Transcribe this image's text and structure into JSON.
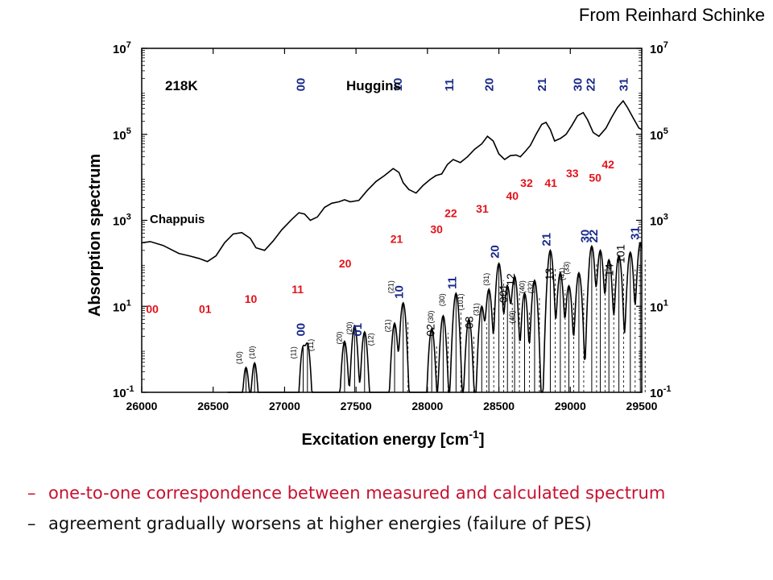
{
  "credit": "From Reinhard Schinke",
  "chart_data": {
    "type": "line",
    "xlabel": "Excitation energy [cm",
    "xlabel_exp": "-1",
    "xlabel_close": "]",
    "ylabel": "Absorption spectrum",
    "xlim": [
      26000,
      29500
    ],
    "ylim": [
      0.1,
      10000000
    ],
    "yscale": "log",
    "x_ticks": [
      "26000",
      "26500",
      "27000",
      "27500",
      "28000",
      "28500",
      "29000",
      "29500"
    ],
    "y_ticks": [
      {
        "base": "10",
        "exp": "-1"
      },
      {
        "base": "10",
        "exp": "1"
      },
      {
        "base": "10",
        "exp": "3"
      },
      {
        "base": "10",
        "exp": "5"
      },
      {
        "base": "10",
        "exp": "7"
      }
    ],
    "annotations": {
      "temperature": "218K",
      "huggins": "Huggins",
      "chappuis": "Chappuis"
    },
    "measured": {
      "x": [
        26000,
        26060,
        26150,
        26260,
        26330,
        26400,
        26460,
        26520,
        26580,
        26640,
        26700,
        26760,
        26800,
        26860,
        26920,
        26980,
        27050,
        27100,
        27140,
        27180,
        27230,
        27280,
        27330,
        27380,
        27420,
        27460,
        27520,
        27580,
        27640,
        27700,
        27760,
        27800,
        27830,
        27870,
        27920,
        27970,
        28020,
        28060,
        28100,
        28140,
        28180,
        28230,
        28280,
        28330,
        28380,
        28420,
        28460,
        28500,
        28540,
        28580,
        28620,
        28650,
        28690,
        28720,
        28760,
        28800,
        28830,
        28860,
        28890,
        28930,
        28970,
        29010,
        29050,
        29090,
        29120,
        29160,
        29200,
        29250,
        29290,
        29330,
        29370,
        29400,
        29440,
        29480,
        29500
      ],
      "y": [
        300,
        320,
        260,
        170,
        150,
        130,
        110,
        150,
        300,
        480,
        520,
        380,
        230,
        200,
        330,
        600,
        1050,
        1500,
        1400,
        1000,
        1200,
        2000,
        2500,
        2700,
        3000,
        2700,
        2900,
        5000,
        8000,
        11000,
        16000,
        13000,
        7500,
        5200,
        4300,
        6500,
        9000,
        11000,
        12000,
        20000,
        26000,
        22000,
        30000,
        45000,
        60000,
        90000,
        70000,
        35000,
        26000,
        32000,
        33000,
        30000,
        42000,
        55000,
        100000,
        170000,
        190000,
        130000,
        70000,
        80000,
        100000,
        160000,
        270000,
        320000,
        220000,
        110000,
        90000,
        140000,
        250000,
        420000,
        600000,
        420000,
        240000,
        140000,
        130000
      ]
    },
    "measured_labels": {
      "top": [
        {
          "text": "00",
          "x": 27140,
          "y": 1000000,
          "color": "#1a2a8a"
        },
        {
          "text": "10",
          "x": 27820,
          "y": 1000000,
          "color": "#1a2a8a"
        },
        {
          "text": "11",
          "x": 28180,
          "y": 1000000,
          "color": "#1a2a8a"
        },
        {
          "text": "20",
          "x": 28460,
          "y": 1000000,
          "color": "#1a2a8a"
        },
        {
          "text": "21",
          "x": 28830,
          "y": 1000000,
          "color": "#1a2a8a"
        },
        {
          "text": "30",
          "x": 29080,
          "y": 1000000,
          "color": "#1a2a8a"
        },
        {
          "text": "22",
          "x": 29170,
          "y": 1000000,
          "color": "#1a2a8a"
        },
        {
          "text": "31",
          "x": 29400,
          "y": 1000000,
          "color": "#1a2a8a"
        }
      ],
      "bottom": [
        {
          "text": "00",
          "x": 26030,
          "y": 7,
          "color": "#e3121a"
        },
        {
          "text": "01",
          "x": 26400,
          "y": 7,
          "color": "#e3121a"
        },
        {
          "text": "10",
          "x": 26720,
          "y": 12,
          "color": "#e3121a"
        },
        {
          "text": "11",
          "x": 27050,
          "y": 20,
          "color": "#e3121a"
        },
        {
          "text": "20",
          "x": 27380,
          "y": 80,
          "color": "#e3121a"
        },
        {
          "text": "21",
          "x": 27740,
          "y": 300,
          "color": "#e3121a"
        },
        {
          "text": "30",
          "x": 28020,
          "y": 500,
          "color": "#e3121a"
        },
        {
          "text": "22",
          "x": 28120,
          "y": 1200,
          "color": "#e3121a"
        },
        {
          "text": "31",
          "x": 28340,
          "y": 1500,
          "color": "#e3121a"
        },
        {
          "text": "40",
          "x": 28550,
          "y": 3000,
          "color": "#e3121a"
        },
        {
          "text": "32",
          "x": 28650,
          "y": 6000,
          "color": "#e3121a"
        },
        {
          "text": "41",
          "x": 28820,
          "y": 6000,
          "color": "#e3121a"
        },
        {
          "text": "33",
          "x": 28970,
          "y": 10000,
          "color": "#e3121a"
        },
        {
          "text": "50",
          "x": 29130,
          "y": 8000,
          "color": "#e3121a"
        },
        {
          "text": "42",
          "x": 29220,
          "y": 16000,
          "color": "#e3121a"
        }
      ]
    },
    "calculated_peaks": [
      {
        "x": 26730,
        "h": 0.35
      },
      {
        "x": 26790,
        "h": 0.45
      },
      {
        "x": 27130,
        "h": 1.1
      },
      {
        "x": 27160,
        "h": 1.3
      },
      {
        "x": 27420,
        "h": 1.5
      },
      {
        "x": 27490,
        "h": 3.5
      },
      {
        "x": 27560,
        "h": 2.5
      },
      {
        "x": 27770,
        "h": 4
      },
      {
        "x": 27830,
        "h": 12
      },
      {
        "x": 28030,
        "h": 3
      },
      {
        "x": 28110,
        "h": 6
      },
      {
        "x": 28200,
        "h": 20
      },
      {
        "x": 28290,
        "h": 5
      },
      {
        "x": 28380,
        "h": 10
      },
      {
        "x": 28430,
        "h": 25
      },
      {
        "x": 28500,
        "h": 100
      },
      {
        "x": 28560,
        "h": 30
      },
      {
        "x": 28610,
        "h": 50
      },
      {
        "x": 28680,
        "h": 20
      },
      {
        "x": 28750,
        "h": 40
      },
      {
        "x": 28860,
        "h": 200
      },
      {
        "x": 28930,
        "h": 60
      },
      {
        "x": 28990,
        "h": 30
      },
      {
        "x": 29060,
        "h": 60
      },
      {
        "x": 29150,
        "h": 250
      },
      {
        "x": 29210,
        "h": 200
      },
      {
        "x": 29270,
        "h": 120
      },
      {
        "x": 29340,
        "h": 150
      },
      {
        "x": 29420,
        "h": 180
      },
      {
        "x": 29490,
        "h": 300
      }
    ],
    "calculated_labels": {
      "blue": [
        {
          "text": "00",
          "x": 27140,
          "y": 2
        },
        {
          "text": "01",
          "x": 27540,
          "y": 2
        },
        {
          "text": "10",
          "x": 27830,
          "y": 15
        },
        {
          "text": "11",
          "x": 28200,
          "y": 25
        },
        {
          "text": "20",
          "x": 28500,
          "y": 130
        },
        {
          "text": "21",
          "x": 28860,
          "y": 250
        },
        {
          "text": "30",
          "x": 29130,
          "y": 300
        },
        {
          "text": "22",
          "x": 29190,
          "y": 300
        },
        {
          "text": "31",
          "x": 29480,
          "y": 350
        }
      ],
      "black": [
        {
          "text": "02",
          "x": 28050,
          "y": 2
        },
        {
          "text": "03",
          "x": 28320,
          "y": 3
        },
        {
          "text": "12",
          "x": 28610,
          "y": 30
        },
        {
          "text": "13",
          "x": 28880,
          "y": 40
        },
        {
          "text": "14",
          "x": 29300,
          "y": 50
        },
        {
          "text": "101",
          "x": 29380,
          "y": 100
        },
        {
          "text": "001",
          "x": 28560,
          "y": 12
        }
      ],
      "small": [
        {
          "text": "(10)",
          "x": 26700,
          "y": 0.45
        },
        {
          "text": "(10)",
          "x": 26790,
          "y": 0.6
        },
        {
          "text": "(11)",
          "x": 27080,
          "y": 0.6
        },
        {
          "text": "(11)",
          "x": 27200,
          "y": 0.9
        },
        {
          "text": "(20)",
          "x": 27400,
          "y": 1.3
        },
        {
          "text": "(20)",
          "x": 27470,
          "y": 2.2
        },
        {
          "text": "(12)",
          "x": 27620,
          "y": 1.2
        },
        {
          "text": "(21)",
          "x": 27740,
          "y": 2.5
        },
        {
          "text": "(21)",
          "x": 27760,
          "y": 20
        },
        {
          "text": "(30)",
          "x": 28040,
          "y": 4
        },
        {
          "text": "(30)",
          "x": 28120,
          "y": 10
        },
        {
          "text": "(101)",
          "x": 28250,
          "y": 8
        },
        {
          "text": "(31)",
          "x": 28360,
          "y": 6
        },
        {
          "text": "(31)",
          "x": 28430,
          "y": 30
        },
        {
          "text": "(40)",
          "x": 28610,
          "y": 4
        },
        {
          "text": "(40)",
          "x": 28680,
          "y": 20
        },
        {
          "text": "(32)",
          "x": 28740,
          "y": 20
        },
        {
          "text": "(41)",
          "x": 28960,
          "y": 40
        },
        {
          "text": "(33)",
          "x": 28990,
          "y": 55
        }
      ]
    }
  },
  "bullets": [
    {
      "dash": "–",
      "text": "one-to-one correspondence between measured and calculated spectrum",
      "color": "#c8102e"
    },
    {
      "dash": "–",
      "text": "agreement gradually worsens at higher energies (failure of PES)",
      "color": "#111111"
    }
  ]
}
